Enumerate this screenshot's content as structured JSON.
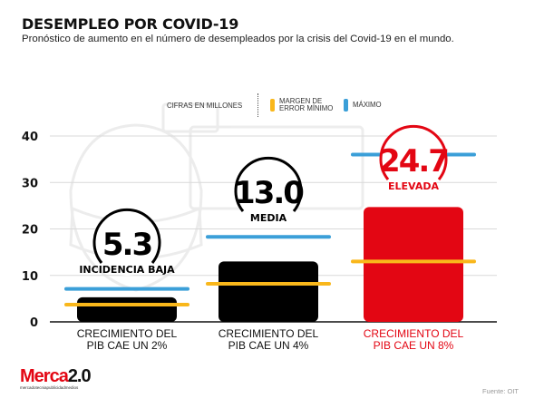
{
  "header": {
    "title": "DESEMPLEO POR COVID-19",
    "subtitle": "Pronóstico de aumento en el número de desempleados por la crisis del Covid-19 en el mundo."
  },
  "legend": {
    "unit": "CIFRAS EN MILLONES",
    "min_line1": "MARGEN DE",
    "min_line2": "ERROR MÍNIMO",
    "max": "MÁXIMO"
  },
  "colors": {
    "bar_default": "#000000",
    "bar_highlight": "#e30613",
    "minimo": "#f9b71b",
    "maximo": "#3b9fd8",
    "grid": "#d9d9d9"
  },
  "chart_data": {
    "type": "bar",
    "title": "DESEMPLEO POR COVID-19",
    "ylabel": "CIFRAS EN MILLONES",
    "ylim": [
      0,
      40
    ],
    "yticks": [
      "0",
      "10",
      "20",
      "30",
      "40"
    ],
    "grid": true,
    "categories": [
      {
        "line1": "CRECIMIENTO DEL",
        "line2": "PIB CAE UN 2%"
      },
      {
        "line1": "CRECIMIENTO DEL",
        "line2": "PIB CAE UN 4%"
      },
      {
        "line1": "CRECIMIENTO DEL",
        "line2": "PIB CAE UN 8%"
      }
    ],
    "values": [
      5.3,
      13.0,
      24.7
    ],
    "value_labels": [
      "5.3",
      "13.0",
      "24.7"
    ],
    "levels": [
      "INCIDENCIA BAJA",
      "MEDIA",
      "ELEVADA"
    ],
    "series": [
      {
        "name": "MARGEN DE ERROR MÍNIMO",
        "values": [
          3.7,
          8.2,
          13.0
        ]
      },
      {
        "name": "MÁXIMO",
        "values": [
          7.1,
          18.3,
          36.0
        ]
      }
    ],
    "highlight_index": 2
  },
  "footer": {
    "logo_main": "Merca",
    "logo_num": "2.0",
    "logo_tagline": "mercadotecniapublicidadmedios",
    "source": "Fuente: OIT"
  }
}
